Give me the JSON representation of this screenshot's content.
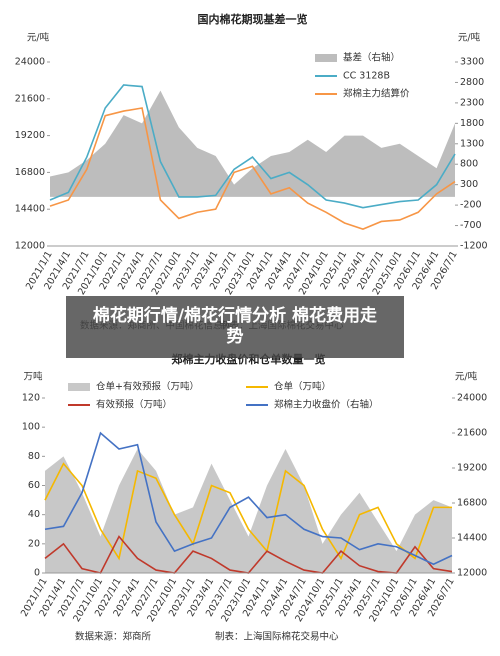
{
  "banner": "棉花期行情/棉花行情分析 棉花费用走势",
  "chart_data": [
    {
      "type": "line",
      "title": "国内棉花期现基差一览",
      "y_label": "元/吨",
      "y2_label": "元/吨",
      "source": "数据来源：郑商所、中国棉花信息网",
      "credit": "制表：上海国际棉花交易中心",
      "categories": [
        "2021/1/1",
        "2021/4/1",
        "2021/7/1",
        "2021/10/1",
        "2022/1/1",
        "2022/4/1",
        "2022/7/1",
        "2022/10/1",
        "2023/1/1",
        "2023/4/1",
        "2023/7/1",
        "2023/10/1",
        "2024/1/1",
        "2024/4/1",
        "2024/7/1",
        "2024/10/1",
        "2025/1/1",
        "2025/4/1",
        "2025/7/1",
        "2025/10/1",
        "2026/1/1",
        "2026/4/1",
        "2026/7/1"
      ],
      "ylim": [
        12000,
        24000
      ],
      "yticks": [
        12000,
        14400,
        16800,
        19200,
        21600,
        24000
      ],
      "y2lim": [
        -1200,
        3300
      ],
      "y2ticks": [
        -1200,
        -700,
        -200,
        300,
        800,
        1300,
        1800,
        2300,
        2800,
        3300
      ],
      "series": [
        {
          "name": "基差（右轴）",
          "color": "#bdbdbd",
          "style": "area",
          "axis": "y2",
          "values": [
            500,
            600,
            900,
            1300,
            2000,
            1800,
            2600,
            1700,
            1200,
            1000,
            300,
            700,
            1000,
            1100,
            1400,
            1100,
            1500,
            1500,
            1200,
            1300,
            1000,
            700,
            1800
          ]
        },
        {
          "name": "CC 3128B",
          "color": "#4bacc6",
          "style": "line",
          "values": [
            15000,
            15500,
            17800,
            21000,
            22500,
            22400,
            17500,
            15200,
            15200,
            15300,
            17000,
            17800,
            16400,
            16800,
            16000,
            15000,
            14800,
            14500,
            14700,
            14900,
            15000,
            16000,
            18000
          ]
        },
        {
          "name": "郑棉主力结算价",
          "color": "#f79646",
          "style": "line",
          "values": [
            14600,
            15000,
            17000,
            20500,
            20800,
            21000,
            15000,
            13800,
            14200,
            14400,
            16800,
            17200,
            15400,
            15800,
            14800,
            14200,
            13500,
            13100,
            13600,
            13700,
            14200,
            15400,
            16200
          ]
        }
      ]
    },
    {
      "type": "line",
      "title": "郑棉主力收盘价和仓单数量一览",
      "y_label": "万吨",
      "y2_label": "元/吨",
      "source": "数据来源：郑商所",
      "credit": "制表：上海国际棉花交易中心",
      "categories": [
        "2021/1/1",
        "2021/4/1",
        "2021/7/1",
        "2021/10/1",
        "2022/1/1",
        "2022/4/1",
        "2022/7/1",
        "2022/10/1",
        "2023/1/1",
        "2023/4/1",
        "2023/7/1",
        "2023/10/1",
        "2024/1/1",
        "2024/4/1",
        "2024/7/1",
        "2024/10/1",
        "2025/1/1",
        "2025/4/1",
        "2025/7/1",
        "2025/10/1",
        "2026/1/1",
        "2026/4/1",
        "2026/7/1"
      ],
      "ylim": [
        0,
        120
      ],
      "yticks": [
        0,
        20,
        40,
        60,
        80,
        100,
        120
      ],
      "y2lim": [
        12000,
        24000
      ],
      "y2ticks": [
        12000,
        14400,
        16800,
        19200,
        21600,
        24000
      ],
      "series": [
        {
          "name": "仓单+有效预报（万吨）",
          "color": "#c8c8c8",
          "style": "area",
          "values": [
            70,
            80,
            55,
            25,
            60,
            85,
            70,
            40,
            45,
            75,
            50,
            25,
            60,
            85,
            60,
            20,
            40,
            55,
            35,
            15,
            40,
            50,
            45
          ]
        },
        {
          "name": "仓单（万吨）",
          "color": "#f5b800",
          "style": "line",
          "values": [
            50,
            75,
            60,
            30,
            10,
            70,
            65,
            40,
            20,
            60,
            55,
            30,
            15,
            70,
            60,
            30,
            10,
            40,
            45,
            20,
            10,
            45,
            45
          ]
        },
        {
          "name": "有效预报（万吨）",
          "color": "#c0392b",
          "style": "line",
          "values": [
            10,
            20,
            3,
            0,
            25,
            10,
            2,
            0,
            15,
            10,
            2,
            0,
            15,
            8,
            2,
            0,
            15,
            5,
            1,
            0,
            18,
            3,
            1
          ]
        },
        {
          "name": "郑棉主力收盘价（右轴）",
          "color": "#4472c4",
          "style": "line",
          "axis": "y2",
          "values": [
            15000,
            15200,
            17500,
            21600,
            20500,
            20800,
            15500,
            13500,
            14000,
            14400,
            16500,
            17200,
            15800,
            16000,
            15000,
            14500,
            14400,
            13600,
            14000,
            13800,
            13200,
            12600,
            13200
          ]
        }
      ]
    }
  ]
}
